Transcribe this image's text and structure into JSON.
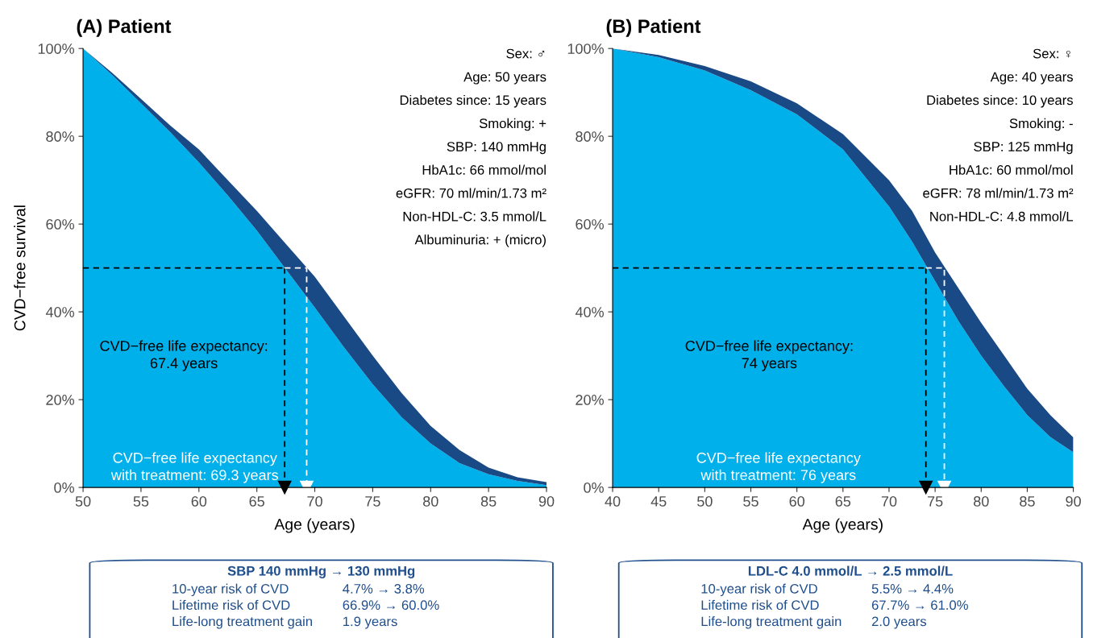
{
  "chart_data": [
    {
      "type": "area",
      "title": "(A) Patient",
      "xlabel": "Age (years)",
      "ylabel": "CVD−free survival",
      "x": [
        50,
        52.5,
        55,
        57.5,
        60,
        62.5,
        65,
        67.5,
        70,
        72.5,
        75,
        77.5,
        80,
        82.5,
        85,
        87.5,
        90
      ],
      "stacked": true,
      "series": [
        {
          "color": "#00b0ea",
          "values": [
            100,
            94,
            87.5,
            81,
            74,
            66.5,
            58.5,
            49.7,
            41,
            32,
            23.5,
            16,
            10,
            5.5,
            3,
            1.5,
            0.5
          ]
        },
        {
          "color": "#1a4a86",
          "values": [
            0,
            0.5,
            1,
            1.5,
            3,
            3.5,
            4.5,
            5.8,
            7,
            7,
            6.5,
            5.5,
            4,
            3,
            1.5,
            0.8,
            0.7
          ]
        }
      ],
      "xlim": [
        50,
        90
      ],
      "xticks": [
        50,
        55,
        60,
        65,
        70,
        75,
        80,
        85,
        90
      ],
      "ylim": [
        0,
        100
      ],
      "yticks": [
        {
          "value": 0,
          "label": "0%"
        },
        {
          "value": 20,
          "label": "20%"
        },
        {
          "value": 40,
          "label": "40%"
        },
        {
          "value": 60,
          "label": "60%"
        },
        {
          "value": 80,
          "label": "80%"
        },
        {
          "value": 100,
          "label": "100%"
        }
      ],
      "ref_lines": [
        {
          "axis": "y",
          "value": 50,
          "label": null,
          "color": "#000000",
          "line_style": "dashed"
        },
        {
          "axis": "x",
          "value": 67.4,
          "label": "CVD−free life expectancy:\n67.4 years",
          "color": "#000000",
          "line_style": "dashed"
        },
        {
          "axis": "x",
          "value": 69.3,
          "label": "CVD−free life expectancy\nwith treatment: 69.3 years",
          "color": "#ffffff",
          "line_style": "dashed"
        }
      ],
      "annotations": [
        "Sex: ♂",
        "Age: 50 years",
        "Diabetes since: 15 years",
        "Smoking: +",
        "SBP: 140 mmHg",
        "HbA1c: 66 mmol/mol",
        "eGFR: 70 ml/min/1.73 m²",
        "Non-HDL-C: 3.5 mmol/L",
        "Albuminuria: + (micro)"
      ]
    },
    {
      "type": "area",
      "title": "(B) Patient",
      "xlabel": "Age (years)",
      "x": [
        40,
        45,
        50,
        55,
        60,
        65,
        70,
        72.5,
        75,
        77.5,
        80,
        82.5,
        85,
        87.5,
        90
      ],
      "stacked": true,
      "series": [
        {
          "color": "#00b0ea",
          "values": [
            100,
            98,
            95,
            90.5,
            85,
            77,
            64,
            56,
            47,
            38,
            30,
            23,
            16.5,
            11.5,
            8
          ]
        },
        {
          "color": "#1a4a86",
          "values": [
            0,
            0.5,
            1,
            2,
            2.5,
            3.5,
            6,
            7,
            6.5,
            7.5,
            7.5,
            7,
            6,
            5,
            3.4
          ]
        }
      ],
      "xlim": [
        40,
        90
      ],
      "xticks": [
        40,
        45,
        50,
        55,
        60,
        65,
        70,
        75,
        80,
        85,
        90
      ],
      "ylim": [
        0,
        100
      ],
      "yticks": [
        {
          "value": 0,
          "label": "0%"
        },
        {
          "value": 20,
          "label": "20%"
        },
        {
          "value": 40,
          "label": "40%"
        },
        {
          "value": 60,
          "label": "60%"
        },
        {
          "value": 80,
          "label": "80%"
        },
        {
          "value": 100,
          "label": "100%"
        }
      ],
      "ref_lines": [
        {
          "axis": "y",
          "value": 50,
          "label": null,
          "color": "#000000",
          "line_style": "dashed"
        },
        {
          "axis": "x",
          "value": 74,
          "label": "CVD−free life expectancy:\n74 years",
          "color": "#000000",
          "line_style": "dashed"
        },
        {
          "axis": "x",
          "value": 76,
          "label": "CVD−free life expectancy\nwith treatment: 76 years",
          "color": "#ffffff",
          "line_style": "dashed"
        }
      ],
      "annotations": [
        "Sex: ♀",
        "Age: 40 years",
        "Diabetes since: 10 years",
        "Smoking: -",
        "SBP: 125 mmHg",
        "HbA1c: 60 mmol/mol",
        "eGFR: 78 ml/min/1.73 m²",
        "Non-HDL-C: 4.8 mmol/L"
      ]
    },
    {
      "type": "other",
      "title": "SBP 140 mmHg → 130 mmHg",
      "annotations": [
        "10-year risk of CVD",
        "4.7% → 3.8%",
        "Lifetime risk of CVD",
        "66.9% → 60.0%",
        "Life-long treatment gain",
        "1.9 years"
      ]
    },
    {
      "type": "other",
      "title": "LDL-C 4.0 mmol/L → 2.5 mmol/L",
      "annotations": [
        "10-year risk of CVD",
        "5.5% → 4.4%",
        "Lifetime risk of CVD",
        "67.7% → 61.0%",
        "Life-long treatment gain",
        "2.0 years"
      ]
    }
  ]
}
